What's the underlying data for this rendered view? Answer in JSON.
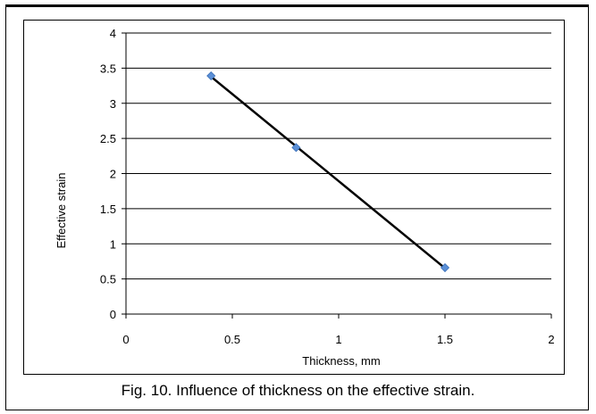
{
  "caption": "Fig. 10. Influence of thickness on the effective strain.",
  "chart_data": {
    "type": "scatter",
    "xlabel": "Thickness, mm",
    "ylabel": "Effective strain",
    "xlim": [
      0,
      2
    ],
    "ylim": [
      0,
      4
    ],
    "x_ticks": [
      "0",
      "0.5",
      "1",
      "1.5",
      "2"
    ],
    "y_ticks": [
      "0",
      "0.5",
      "1",
      "1.5",
      "2",
      "2.5",
      "3",
      "3.5",
      "4"
    ],
    "grid": "horizontal",
    "series": [
      {
        "x": [
          0.4,
          0.8,
          1.5
        ],
        "y": [
          3.39,
          2.37,
          0.66
        ],
        "marker_color": "#5b8fd6",
        "line_color": "#000000",
        "trendline": "linear"
      }
    ]
  }
}
